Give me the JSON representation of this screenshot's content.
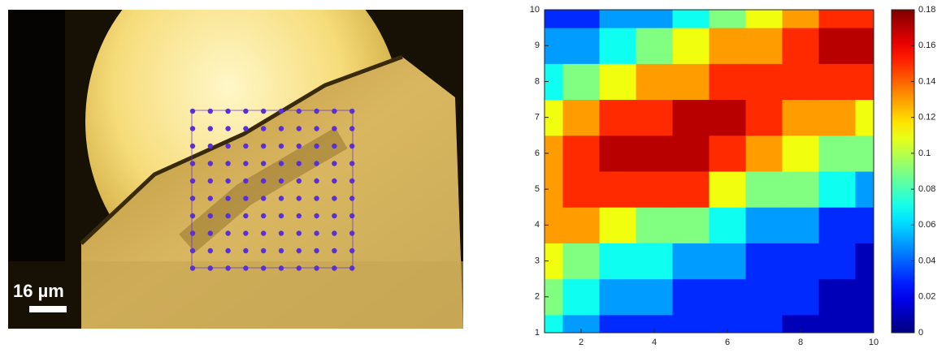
{
  "image": {
    "scale_label": "16 µm"
  },
  "chart_data": {
    "type": "contour",
    "x": [
      1,
      2,
      3,
      4,
      5,
      6,
      7,
      8,
      9,
      10
    ],
    "y": [
      1,
      2,
      3,
      4,
      5,
      6,
      7,
      8,
      9,
      10
    ],
    "z": [
      [
        0.06,
        0.04,
        0.03,
        0.02,
        0.02,
        0.02,
        0.02,
        0.01,
        0.01,
        0.01
      ],
      [
        0.08,
        0.06,
        0.05,
        0.04,
        0.03,
        0.03,
        0.03,
        0.02,
        0.01,
        0.01
      ],
      [
        0.11,
        0.09,
        0.07,
        0.06,
        0.05,
        0.04,
        0.03,
        0.03,
        0.02,
        0.01
      ],
      [
        0.13,
        0.12,
        0.1,
        0.09,
        0.08,
        0.07,
        0.05,
        0.04,
        0.03,
        0.03
      ],
      [
        0.13,
        0.14,
        0.15,
        0.15,
        0.14,
        0.11,
        0.09,
        0.08,
        0.07,
        0.05
      ],
      [
        0.12,
        0.14,
        0.16,
        0.17,
        0.16,
        0.15,
        0.13,
        0.11,
        0.09,
        0.08
      ],
      [
        0.1,
        0.12,
        0.14,
        0.15,
        0.16,
        0.16,
        0.15,
        0.13,
        0.12,
        0.11
      ],
      [
        0.07,
        0.09,
        0.11,
        0.12,
        0.13,
        0.14,
        0.14,
        0.14,
        0.15,
        0.14
      ],
      [
        0.04,
        0.05,
        0.07,
        0.09,
        0.1,
        0.12,
        0.13,
        0.15,
        0.17,
        0.16
      ],
      [
        0.02,
        0.03,
        0.04,
        0.05,
        0.07,
        0.08,
        0.11,
        0.13,
        0.15,
        0.15
      ]
    ],
    "xlim": [
      1,
      10
    ],
    "xticks": [
      2,
      4,
      6,
      8,
      10
    ],
    "ylim": [
      1,
      10
    ],
    "yticks": [
      1,
      2,
      3,
      4,
      5,
      6,
      7,
      8,
      9,
      10
    ],
    "clim": [
      0,
      0.18
    ],
    "cticks": [
      0,
      0.02,
      0.04,
      0.06,
      0.08,
      0.1,
      0.12,
      0.14,
      0.16,
      0.18
    ],
    "colormap": "jet",
    "level_step": 0.02
  }
}
